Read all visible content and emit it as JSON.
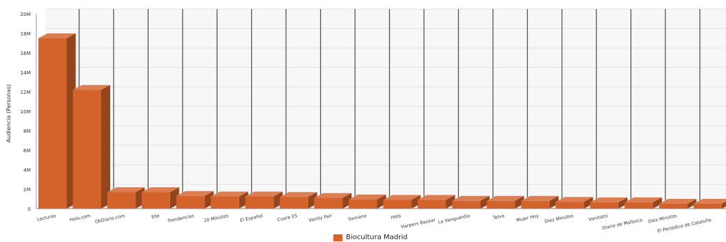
{
  "chart_data": {
    "type": "bar",
    "ylabel": "Audiencia (Personas)",
    "ylim": [
      0,
      20000000
    ],
    "ytick_values": [
      0,
      2000000,
      4000000,
      6000000,
      8000000,
      10000000,
      12000000,
      14000000,
      16000000,
      18000000,
      20000000
    ],
    "ytick_labels": [
      "0",
      "2M",
      "4M",
      "6M",
      "8M",
      "10M",
      "12M",
      "14M",
      "16M",
      "18M",
      "20M"
    ],
    "categories": [
      "Lecturas",
      "Hola.com",
      "OkDiario.com",
      "Elle",
      "Trendencias",
      "20 Minutos",
      "El Español",
      "Cuore ES",
      "Vanity Fair",
      "Semana",
      "Hola",
      "Harpers Bazaar",
      "La Vanguardia",
      "Telva",
      "Mujer Hoy",
      "Diez Minutos",
      "Vanitatis",
      "Diario de Mallorca",
      "Diez Minutos",
      "El Periódico de Cataluña"
    ],
    "series": [
      {
        "name": "Biocultura Madrid",
        "color": "#d4622b",
        "values": [
          17500000,
          12200000,
          1700000,
          1700000,
          1300000,
          1250000,
          1250000,
          1200000,
          1100000,
          950000,
          900000,
          900000,
          800000,
          800000,
          800000,
          700000,
          650000,
          650000,
          500000,
          500000
        ]
      }
    ],
    "grid": true,
    "legend_position": "bottom-center"
  },
  "legend": {
    "label": "Biocultura  Madrid",
    "color": "#d4622b"
  }
}
